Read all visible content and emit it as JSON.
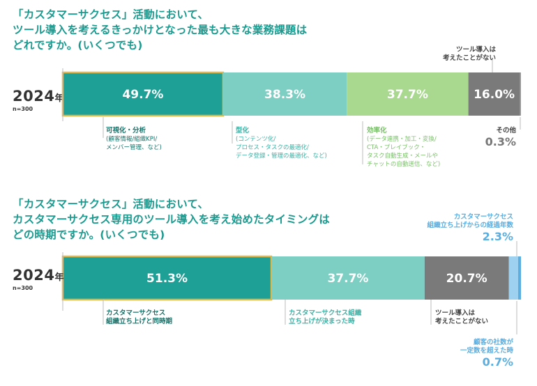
{
  "q1": {
    "title": "「カスタマーサクセス」活動において、\nツール導入を考えるきっかけとなった最も大きな業務課題は\nどれですか。(いくつでも)",
    "year": "2024",
    "year_suffix": "年",
    "n": "n=300",
    "callout_top": "ツール導入は\n考えたことがない",
    "labels": [
      {
        "title": "可視化・分析",
        "sub": "(顧客情報/組織KPI/\nメンバー管理、など)"
      },
      {
        "title": "型化",
        "sub": "(コンテンツ化/\nプロセス・タスクの最適化/\nデータ登録・管理の最適化、など)"
      },
      {
        "title": "効率化",
        "sub": "(データ連携・加工・変換/\nCTA・プレイブック・\nタスク自動生成・メールや\nチャットの自動送信、など)"
      }
    ],
    "other_label": "その他",
    "other_value": "0.3%"
  },
  "q2": {
    "title": "「カスタマーサクセス」活動において、\nカスタマーサクセス専用のツール導入を考え始めたタイミングは\nどの時期ですか。(いくつでも)",
    "year": "2024",
    "year_suffix": "年",
    "n": "n=300",
    "callout_top": "カスタマーサクセス\n組織立ち上げからの経過年数",
    "callout_top_value": "2.3%",
    "labels": [
      {
        "title": "カスタマーサクセス\n組織立ち上げと同時期"
      },
      {
        "title": "カスタマーサクセス組織\n立ち上げが決まった時"
      },
      {
        "title": "ツール導入は\n考えたことがない"
      }
    ],
    "callout_bottom": "顧客の社数が\n一定数を超えた時",
    "callout_bottom_value": "0.7%"
  },
  "chart_data": [
    {
      "type": "bar",
      "categories": [
        "可視化・分析",
        "型化",
        "効率化",
        "ツール導入は考えたことがない",
        "その他"
      ],
      "values": [
        49.7,
        38.3,
        37.7,
        16.0,
        0.3
      ],
      "labels": [
        "49.7%",
        "38.3%",
        "37.7%",
        "16.0%",
        ""
      ],
      "colors": [
        "#1fa097",
        "#7ecfc3",
        "#a9d88f",
        "#7a7a7a",
        "#9a9a9a"
      ]
    },
    {
      "type": "bar",
      "categories": [
        "カスタマーサクセス組織立ち上げと同時期",
        "カスタマーサクセス組織立ち上げが決まった時",
        "ツール導入は考えたことがない",
        "カスタマーサクセス組織立ち上げからの経過年数",
        "顧客の社数が一定数を超えた時"
      ],
      "values": [
        51.3,
        37.7,
        20.7,
        2.3,
        0.7
      ],
      "labels": [
        "51.3%",
        "37.7%",
        "20.7%",
        "",
        ""
      ],
      "colors": [
        "#1fa097",
        "#7ecfc3",
        "#7a7a7a",
        "#9ed1f0",
        "#5aaee0"
      ]
    }
  ]
}
